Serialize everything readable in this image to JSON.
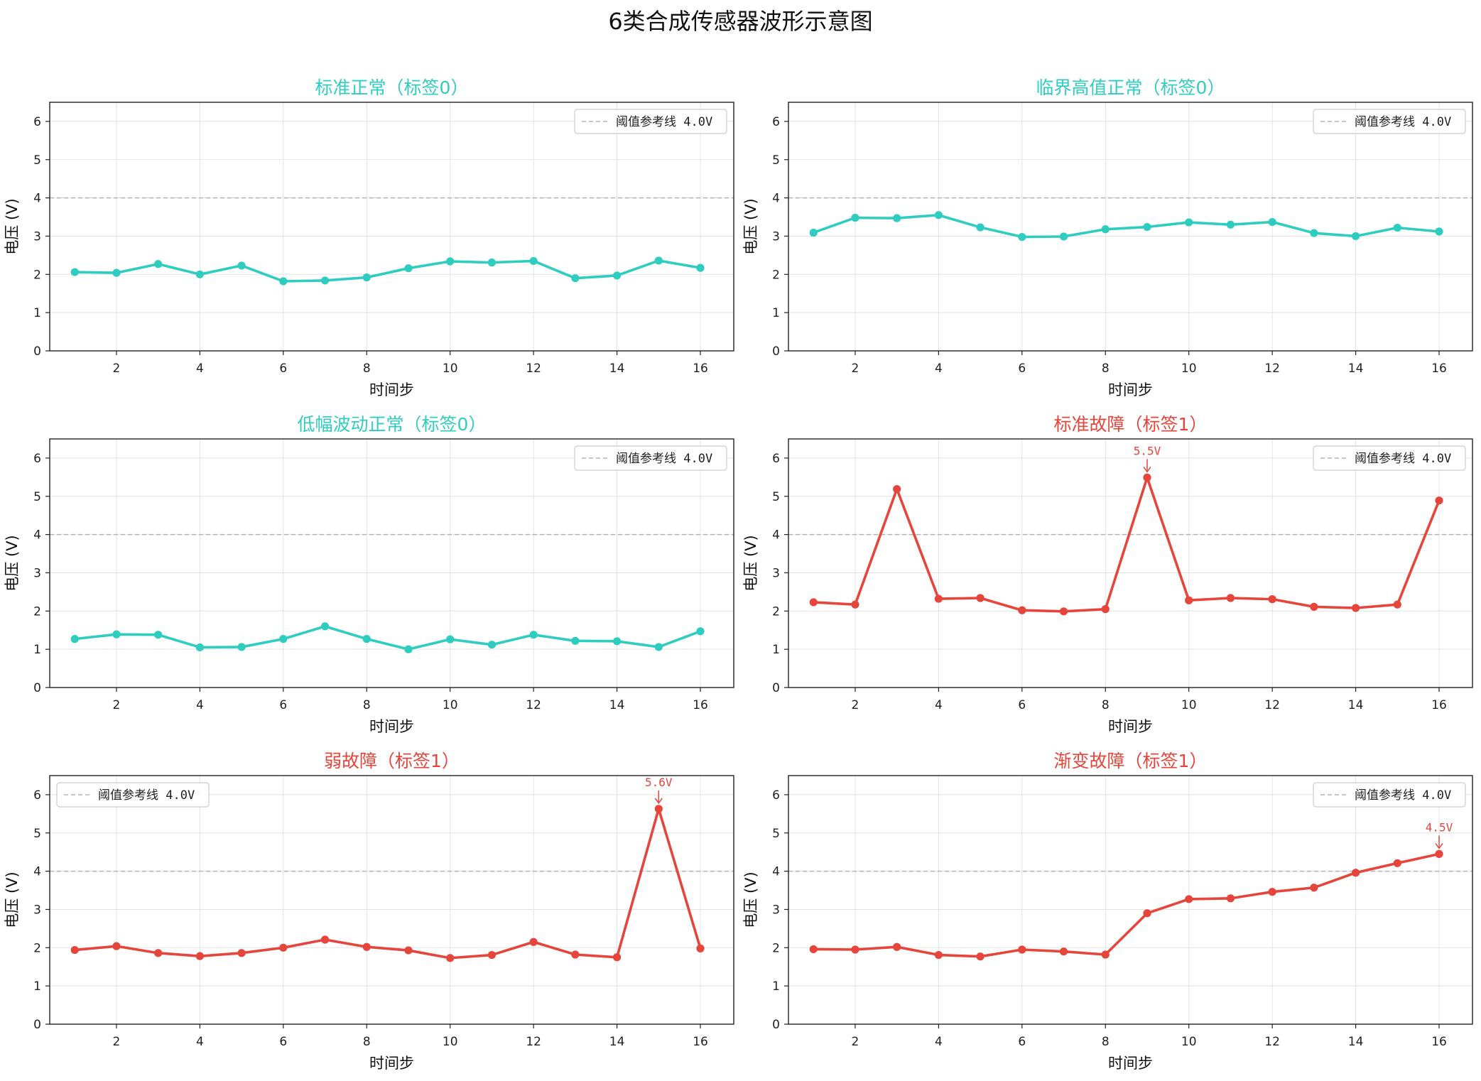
{
  "figure": {
    "title": "6类合成传感器波形示意图"
  },
  "colors": {
    "normal": "#2ecdbf",
    "fault": "#e5453b",
    "threshold": "#b3b3b3",
    "grid": "#e3e3e3"
  },
  "chart_data": [
    {
      "type": "line",
      "title": "标准正常（标签0）",
      "category": "normal",
      "xlabel": "时间步",
      "ylabel": "电压 (V)",
      "x": [
        1,
        2,
        3,
        4,
        5,
        6,
        7,
        8,
        9,
        10,
        11,
        12,
        13,
        14,
        15,
        16
      ],
      "y": [
        2.06,
        2.04,
        2.27,
        2.0,
        2.23,
        1.82,
        1.84,
        1.92,
        2.16,
        2.34,
        2.31,
        2.35,
        1.9,
        1.97,
        2.36,
        2.17
      ],
      "xlim": [
        0.4,
        16.8
      ],
      "ylim": [
        0,
        6.5
      ],
      "xticks": [
        2,
        4,
        6,
        8,
        10,
        12,
        14,
        16
      ],
      "yticks": [
        0,
        1,
        2,
        3,
        4,
        5,
        6
      ],
      "threshold": 4.0,
      "legend": "阈值参考线 4.0V",
      "legend_loc": "upper right",
      "grid": true,
      "annotations": []
    },
    {
      "type": "line",
      "title": "临界高值正常（标签0）",
      "category": "normal",
      "xlabel": "时间步",
      "ylabel": "电压 (V)",
      "x": [
        1,
        2,
        3,
        4,
        5,
        6,
        7,
        8,
        9,
        10,
        11,
        12,
        13,
        14,
        15,
        16
      ],
      "y": [
        3.09,
        3.48,
        3.47,
        3.55,
        3.23,
        2.98,
        2.99,
        3.18,
        3.24,
        3.36,
        3.3,
        3.37,
        3.08,
        3.0,
        3.22,
        3.12
      ],
      "xlim": [
        0.4,
        16.8
      ],
      "ylim": [
        0,
        6.5
      ],
      "xticks": [
        2,
        4,
        6,
        8,
        10,
        12,
        14,
        16
      ],
      "yticks": [
        0,
        1,
        2,
        3,
        4,
        5,
        6
      ],
      "threshold": 4.0,
      "legend": "阈值参考线 4.0V",
      "legend_loc": "upper right",
      "grid": true,
      "annotations": []
    },
    {
      "type": "line",
      "title": "低幅波动正常（标签0）",
      "category": "normal",
      "xlabel": "时间步",
      "ylabel": "电压 (V)",
      "x": [
        1,
        2,
        3,
        4,
        5,
        6,
        7,
        8,
        9,
        10,
        11,
        12,
        13,
        14,
        15,
        16
      ],
      "y": [
        1.27,
        1.39,
        1.38,
        1.05,
        1.06,
        1.27,
        1.6,
        1.27,
        1.0,
        1.26,
        1.12,
        1.38,
        1.22,
        1.21,
        1.06,
        1.47
      ],
      "xlim": [
        0.4,
        16.8
      ],
      "ylim": [
        0,
        6.5
      ],
      "xticks": [
        2,
        4,
        6,
        8,
        10,
        12,
        14,
        16
      ],
      "yticks": [
        0,
        1,
        2,
        3,
        4,
        5,
        6
      ],
      "threshold": 4.0,
      "legend": "阈值参考线 4.0V",
      "legend_loc": "upper right",
      "grid": true,
      "annotations": []
    },
    {
      "type": "line",
      "title": "标准故障（标签1）",
      "category": "fault",
      "xlabel": "时间步",
      "ylabel": "电压 (V)",
      "x": [
        1,
        2,
        3,
        4,
        5,
        6,
        7,
        8,
        9,
        10,
        11,
        12,
        13,
        14,
        15,
        16
      ],
      "y": [
        2.23,
        2.17,
        5.19,
        2.32,
        2.34,
        2.02,
        1.99,
        2.05,
        5.49,
        2.28,
        2.34,
        2.31,
        2.11,
        2.08,
        2.17,
        4.89
      ],
      "xlim": [
        0.4,
        16.8
      ],
      "ylim": [
        0,
        6.5
      ],
      "xticks": [
        2,
        4,
        6,
        8,
        10,
        12,
        14,
        16
      ],
      "yticks": [
        0,
        1,
        2,
        3,
        4,
        5,
        6
      ],
      "threshold": 4.0,
      "legend": "阈值参考线 4.0V",
      "legend_loc": "upper right",
      "grid": true,
      "annotations": [
        {
          "x": 9,
          "y": 5.49,
          "text": "5.5V"
        }
      ]
    },
    {
      "type": "line",
      "title": "弱故障（标签1）",
      "category": "fault",
      "xlabel": "时间步",
      "ylabel": "电压 (V)",
      "x": [
        1,
        2,
        3,
        4,
        5,
        6,
        7,
        8,
        9,
        10,
        11,
        12,
        13,
        14,
        15,
        16
      ],
      "y": [
        1.94,
        2.04,
        1.86,
        1.78,
        1.86,
        2.0,
        2.21,
        2.02,
        1.93,
        1.73,
        1.81,
        2.15,
        1.82,
        1.75,
        5.63,
        1.98
      ],
      "xlim": [
        0.4,
        16.8
      ],
      "ylim": [
        0,
        6.5
      ],
      "xticks": [
        2,
        4,
        6,
        8,
        10,
        12,
        14,
        16
      ],
      "yticks": [
        0,
        1,
        2,
        3,
        4,
        5,
        6
      ],
      "threshold": 4.0,
      "legend": "阈值参考线 4.0V",
      "legend_loc": "upper left",
      "grid": true,
      "annotations": [
        {
          "x": 15,
          "y": 5.63,
          "text": "5.6V"
        }
      ]
    },
    {
      "type": "line",
      "title": "渐变故障（标签1）",
      "category": "fault",
      "xlabel": "时间步",
      "ylabel": "电压 (V)",
      "x": [
        1,
        2,
        3,
        4,
        5,
        6,
        7,
        8,
        9,
        10,
        11,
        12,
        13,
        14,
        15,
        16
      ],
      "y": [
        1.96,
        1.95,
        2.02,
        1.81,
        1.77,
        1.95,
        1.9,
        1.82,
        2.9,
        3.27,
        3.29,
        3.46,
        3.57,
        3.96,
        4.21,
        4.45
      ],
      "xlim": [
        0.4,
        16.8
      ],
      "ylim": [
        0,
        6.5
      ],
      "xticks": [
        2,
        4,
        6,
        8,
        10,
        12,
        14,
        16
      ],
      "yticks": [
        0,
        1,
        2,
        3,
        4,
        5,
        6
      ],
      "threshold": 4.0,
      "legend": "阈值参考线 4.0V",
      "legend_loc": "upper right",
      "grid": true,
      "annotations": [
        {
          "x": 16,
          "y": 4.45,
          "text": "4.5V"
        }
      ]
    }
  ]
}
